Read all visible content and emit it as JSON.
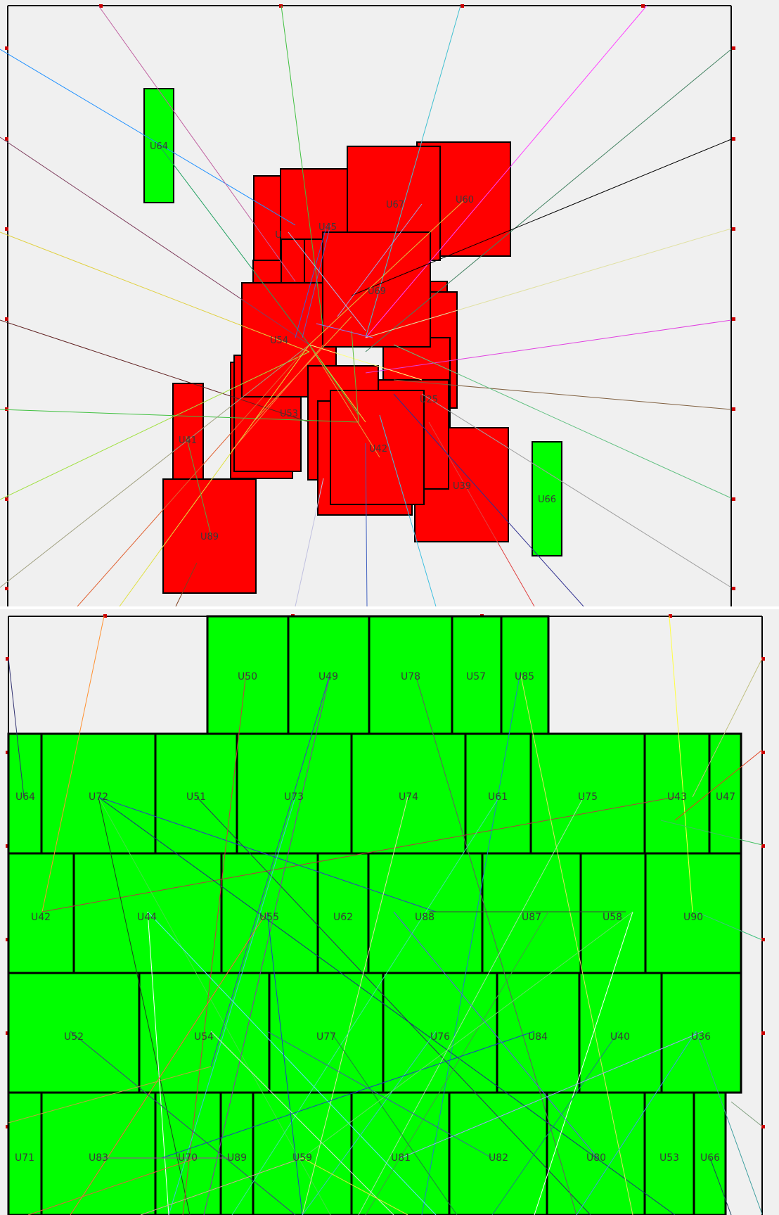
{
  "colors": {
    "background": "#f0f0f0",
    "red_block": "#ff0000",
    "green_block": "#00ff00",
    "outline": "#000000",
    "pin": "#cc0000",
    "label": "#3a3a3a"
  },
  "top_panel": {
    "labels": {
      "U64": "U64",
      "U67": "U67",
      "U60": "U60",
      "U45": "U45",
      "U69": "U69",
      "U54": "U54",
      "U53": "U53",
      "U25": "U25",
      "U42": "U42",
      "U39": "U39",
      "U66": "U66",
      "U41": "U41",
      "U89": "U89",
      "U1": "U"
    }
  },
  "bottom_panel": {
    "labels": {
      "U50": "U50",
      "U49": "U49",
      "U78": "U78",
      "U57": "U57",
      "U85": "U85",
      "U64": "U64",
      "U72": "U72",
      "U51": "U51",
      "U73": "U73",
      "U74": "U74",
      "U61": "U61",
      "U75": "U75",
      "U43": "U43",
      "U47": "U47",
      "U42": "U42",
      "U44": "U44",
      "U55": "U55",
      "U62": "U62",
      "U88": "U88",
      "U87": "U87",
      "U58": "U58",
      "U90": "U90",
      "U52": "U52",
      "U54": "U54",
      "U77": "U77",
      "U76": "U76",
      "U84": "U84",
      "U40": "U40",
      "U36": "U36",
      "U71": "U71",
      "U83": "U83",
      "U70": "U70",
      "U89": "U89",
      "U59": "U59",
      "U81": "U81",
      "U82": "U82",
      "U80": "U80",
      "U53": "U53",
      "U66": "U66"
    }
  }
}
